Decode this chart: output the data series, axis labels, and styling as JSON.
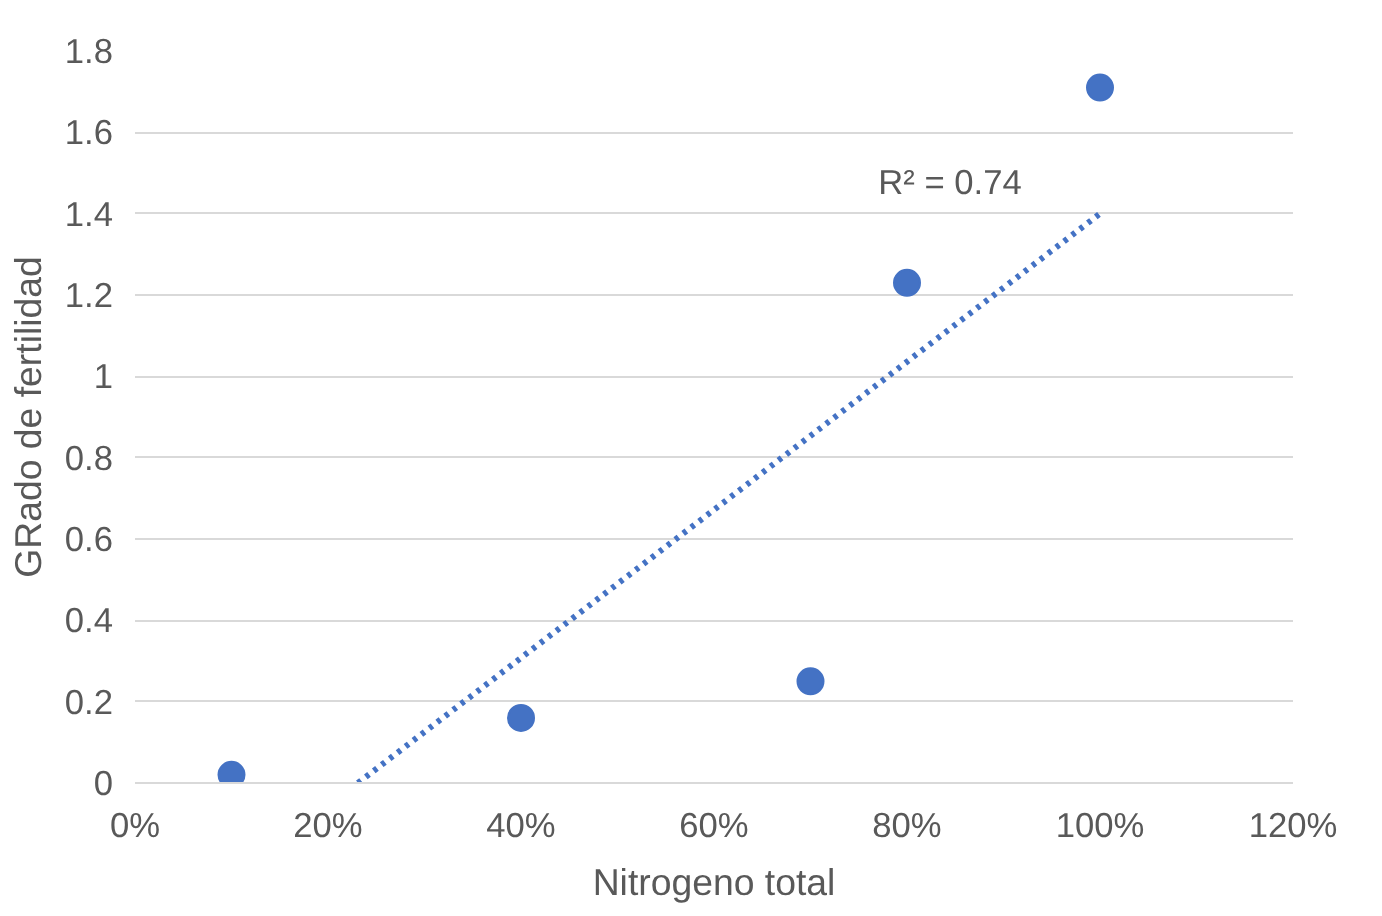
{
  "chart_data": {
    "type": "scatter",
    "xlabel": "Nitrogeno total",
    "ylabel": "GRado de fertilidad",
    "xlim": [
      0,
      120
    ],
    "xticks": [
      {
        "value": 0,
        "label": "0%"
      },
      {
        "value": 20,
        "label": "20%"
      },
      {
        "value": 40,
        "label": "40%"
      },
      {
        "value": 60,
        "label": "60%"
      },
      {
        "value": 80,
        "label": "80%"
      },
      {
        "value": 100,
        "label": "100%"
      },
      {
        "value": 120,
        "label": "120%"
      }
    ],
    "ylim": [
      0,
      1.8
    ],
    "yticks": [
      0,
      {
        "value": 0.2,
        "label": "0.2"
      },
      {
        "value": 0.4,
        "label": "0.4"
      },
      {
        "value": 0.6,
        "label": "0.6"
      },
      {
        "value": 0.8,
        "label": "0.8"
      },
      1,
      {
        "value": 1.2,
        "label": "1.2"
      },
      {
        "value": 1.4,
        "label": "1.4"
      },
      {
        "value": 1.6,
        "label": "1.6"
      },
      {
        "value": 1.8,
        "label": "1.8"
      }
    ],
    "grid": "y",
    "marker": "circle",
    "series": [
      {
        "color": "#4472c4",
        "x": [
          10,
          40,
          70,
          80,
          100
        ],
        "values": [
          0.02,
          0.16,
          0.25,
          1.23,
          1.71
        ]
      },
      {
        "type": "line",
        "color": "#4472c4",
        "line_style": "dotted",
        "marker": "none",
        "x": [
          23.1,
          100
        ],
        "values": [
          0,
          1.4
        ]
      }
    ],
    "annotations": [
      "R² = 0.74"
    ]
  }
}
